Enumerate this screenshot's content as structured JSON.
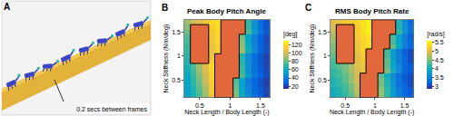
{
  "image_panel": {
    "panel": "A",
    "caption": "0.2 secs between frames"
  },
  "chart_data": [
    {
      "type": "heatmap",
      "panel": "B",
      "title": "Peak Body Pitch Angle",
      "x_label": "Neck Length / Body Length (-)",
      "y_label": "Neck Stiffness (Nm/deg)",
      "x": [
        0.3,
        0.4,
        0.5,
        0.6,
        0.7,
        0.8,
        0.9,
        1.0,
        1.1,
        1.2,
        1.3,
        1.4,
        1.5,
        1.6
      ],
      "y": [
        0.2,
        0.3,
        0.4,
        0.5,
        0.6,
        0.7,
        0.8,
        0.9,
        1.0,
        1.1,
        1.2,
        1.3,
        1.4,
        1.5,
        1.6,
        1.7
      ],
      "xlim": [
        0.25,
        1.65
      ],
      "xticks": [
        0.5,
        1,
        1.5
      ],
      "ylim": [
        0.15,
        1.75
      ],
      "yticks": [
        0.5,
        1,
        1.5
      ],
      "colorbar_title": "[deg]",
      "zlim": [
        15,
        130
      ],
      "zticks": [
        20,
        40,
        60,
        80,
        100,
        120
      ],
      "z": [
        [
          55,
          65,
          75,
          90,
          110,
          null,
          null,
          null,
          85,
          60,
          45,
          35,
          28,
          22
        ],
        [
          55,
          65,
          78,
          92,
          112,
          null,
          null,
          null,
          82,
          58,
          43,
          33,
          27,
          22
        ],
        [
          57,
          68,
          80,
          95,
          112,
          null,
          null,
          null,
          80,
          57,
          42,
          32,
          26,
          21
        ],
        [
          58,
          70,
          82,
          98,
          115,
          null,
          null,
          null,
          78,
          55,
          40,
          31,
          25,
          21
        ],
        [
          60,
          72,
          85,
          100,
          115,
          null,
          null,
          null,
          null,
          75,
          52,
          38,
          30,
          24
        ],
        [
          62,
          74,
          88,
          102,
          118,
          null,
          null,
          null,
          null,
          72,
          50,
          36,
          28,
          23
        ],
        [
          64,
          76,
          90,
          105,
          118,
          null,
          null,
          null,
          null,
          70,
          48,
          35,
          27,
          22
        ],
        [
          66,
          null,
          null,
          null,
          112,
          null,
          null,
          null,
          null,
          68,
          47,
          34,
          26,
          22
        ],
        [
          68,
          null,
          null,
          null,
          110,
          null,
          null,
          null,
          null,
          66,
          46,
          33,
          26,
          21
        ],
        [
          70,
          null,
          null,
          null,
          108,
          115,
          null,
          null,
          null,
          88,
          62,
          44,
          32,
          25
        ],
        [
          72,
          null,
          null,
          null,
          108,
          115,
          null,
          null,
          null,
          86,
          60,
          42,
          31,
          24
        ],
        [
          74,
          null,
          null,
          null,
          110,
          118,
          null,
          null,
          null,
          84,
          58,
          41,
          30,
          24
        ],
        [
          76,
          null,
          null,
          null,
          110,
          118,
          null,
          null,
          null,
          82,
          57,
          40,
          30,
          23
        ],
        [
          80,
          null,
          null,
          null,
          112,
          118,
          null,
          null,
          null,
          null,
          75,
          52,
          36,
          27
        ],
        [
          85,
          null,
          null,
          null,
          115,
          120,
          null,
          null,
          null,
          null,
          72,
          50,
          35,
          26
        ],
        [
          90,
          100,
          105,
          110,
          118,
          122,
          null,
          null,
          null,
          null,
          70,
          48,
          34,
          26
        ]
      ],
      "overlay": {
        "color": "#e2673d",
        "cells": [
          [
            0,
            0,
            0,
            0,
            0,
            1,
            1,
            1,
            0,
            0,
            0,
            0,
            0,
            0
          ],
          [
            0,
            0,
            0,
            0,
            0,
            1,
            1,
            1,
            0,
            0,
            0,
            0,
            0,
            0
          ],
          [
            0,
            0,
            0,
            0,
            0,
            1,
            1,
            1,
            0,
            0,
            0,
            0,
            0,
            0
          ],
          [
            0,
            0,
            0,
            0,
            0,
            1,
            1,
            1,
            0,
            0,
            0,
            0,
            0,
            0
          ],
          [
            0,
            0,
            0,
            0,
            0,
            1,
            1,
            1,
            1,
            0,
            0,
            0,
            0,
            0
          ],
          [
            0,
            0,
            0,
            0,
            0,
            1,
            1,
            1,
            1,
            0,
            0,
            0,
            0,
            0
          ],
          [
            0,
            0,
            0,
            0,
            0,
            1,
            1,
            1,
            1,
            0,
            0,
            0,
            0,
            0
          ],
          [
            0,
            1,
            1,
            1,
            0,
            1,
            1,
            1,
            1,
            0,
            0,
            0,
            0,
            0
          ],
          [
            0,
            1,
            1,
            1,
            0,
            1,
            1,
            1,
            1,
            0,
            0,
            0,
            0,
            0
          ],
          [
            0,
            1,
            1,
            1,
            0,
            0,
            1,
            1,
            1,
            0,
            0,
            0,
            0,
            0
          ],
          [
            0,
            1,
            1,
            1,
            0,
            0,
            1,
            1,
            1,
            0,
            0,
            0,
            0,
            0
          ],
          [
            0,
            1,
            1,
            1,
            0,
            0,
            1,
            1,
            1,
            0,
            0,
            0,
            0,
            0
          ],
          [
            0,
            1,
            1,
            1,
            0,
            0,
            1,
            1,
            1,
            0,
            0,
            0,
            0,
            0
          ],
          [
            0,
            1,
            1,
            1,
            0,
            0,
            1,
            1,
            1,
            1,
            0,
            0,
            0,
            0
          ],
          [
            0,
            1,
            1,
            1,
            0,
            0,
            1,
            1,
            1,
            1,
            0,
            0,
            0,
            0
          ],
          [
            0,
            0,
            0,
            0,
            0,
            0,
            1,
            1,
            1,
            1,
            0,
            0,
            0,
            0
          ]
        ]
      }
    },
    {
      "type": "heatmap",
      "panel": "C",
      "title": "RMS Body Pitch Rate",
      "x_label": "Neck Length / Body Length (-)",
      "y_label": "Neck Stiffness (Nm/deg)",
      "x": [
        0.3,
        0.4,
        0.5,
        0.6,
        0.7,
        0.8,
        0.9,
        1.0,
        1.1,
        1.2,
        1.3,
        1.4,
        1.5,
        1.6
      ],
      "y": [
        0.2,
        0.3,
        0.4,
        0.5,
        0.6,
        0.7,
        0.8,
        0.9,
        1.0,
        1.1,
        1.2,
        1.3,
        1.4,
        1.5,
        1.6,
        1.7
      ],
      "xlim": [
        0.25,
        1.65
      ],
      "xticks": [
        0.5,
        1,
        1.5
      ],
      "ylim": [
        0.15,
        1.75
      ],
      "yticks": [
        0.5,
        1,
        1.5
      ],
      "colorbar_title": "[rad/s]",
      "zlim": [
        2.9,
        5.6
      ],
      "zticks": [
        3,
        3.5,
        4,
        4.5,
        5,
        5.5
      ],
      "z": [
        [
          4.0,
          4.1,
          4.2,
          4.4,
          4.7,
          null,
          null,
          null,
          4.6,
          4.2,
          3.8,
          3.5,
          3.3,
          3.2
        ],
        [
          4.0,
          4.1,
          4.3,
          4.5,
          4.8,
          null,
          null,
          null,
          4.6,
          4.2,
          3.8,
          3.5,
          3.3,
          3.2
        ],
        [
          4.1,
          4.2,
          4.3,
          4.5,
          4.8,
          null,
          null,
          null,
          4.5,
          4.1,
          3.7,
          3.4,
          3.3,
          3.1
        ],
        [
          4.1,
          4.2,
          4.4,
          4.6,
          4.9,
          null,
          null,
          null,
          4.5,
          4.1,
          3.7,
          3.4,
          3.2,
          3.1
        ],
        [
          4.2,
          4.3,
          4.4,
          4.6,
          4.9,
          null,
          null,
          null,
          4.4,
          4.0,
          3.6,
          3.4,
          3.2,
          3.1
        ],
        [
          4.2,
          4.3,
          4.5,
          4.7,
          4.9,
          5.1,
          null,
          null,
          null,
          4.5,
          4.0,
          3.6,
          3.3,
          3.2
        ],
        [
          4.3,
          4.4,
          4.5,
          4.7,
          5.0,
          5.1,
          null,
          null,
          null,
          4.4,
          3.9,
          3.6,
          3.3,
          3.2
        ],
        [
          4.3,
          null,
          null,
          null,
          5.0,
          5.2,
          null,
          null,
          null,
          4.4,
          3.9,
          3.5,
          3.3,
          3.1
        ],
        [
          4.4,
          null,
          null,
          null,
          5.0,
          5.2,
          null,
          null,
          null,
          4.3,
          3.8,
          3.5,
          3.3,
          3.1
        ],
        [
          4.5,
          null,
          null,
          null,
          5.1,
          5.3,
          null,
          null,
          null,
          4.3,
          3.8,
          3.5,
          3.2,
          3.1
        ],
        [
          4.5,
          null,
          null,
          null,
          5.1,
          5.3,
          5.4,
          null,
          null,
          null,
          4.4,
          3.9,
          3.5,
          3.3
        ],
        [
          4.6,
          null,
          null,
          null,
          5.1,
          5.3,
          5.4,
          null,
          null,
          null,
          4.3,
          3.9,
          3.5,
          3.3
        ],
        [
          4.7,
          null,
          null,
          null,
          5.2,
          5.3,
          5.4,
          null,
          null,
          null,
          4.3,
          3.8,
          3.5,
          3.2
        ],
        [
          4.8,
          null,
          null,
          null,
          5.2,
          5.4,
          5.5,
          null,
          null,
          null,
          null,
          4.2,
          3.7,
          3.4
        ],
        [
          4.9,
          null,
          null,
          null,
          5.2,
          5.4,
          5.5,
          null,
          null,
          null,
          null,
          4.1,
          3.7,
          3.4
        ],
        [
          5.0,
          5.1,
          5.2,
          5.2,
          5.3,
          5.4,
          5.5,
          null,
          null,
          null,
          null,
          4.1,
          3.6,
          3.3
        ]
      ],
      "overlay": {
        "color": "#e2673d",
        "cells": [
          [
            0,
            0,
            0,
            0,
            0,
            1,
            1,
            1,
            0,
            0,
            0,
            0,
            0,
            0
          ],
          [
            0,
            0,
            0,
            0,
            0,
            1,
            1,
            1,
            0,
            0,
            0,
            0,
            0,
            0
          ],
          [
            0,
            0,
            0,
            0,
            0,
            1,
            1,
            1,
            0,
            0,
            0,
            0,
            0,
            0
          ],
          [
            0,
            0,
            0,
            0,
            0,
            1,
            1,
            1,
            0,
            0,
            0,
            0,
            0,
            0
          ],
          [
            0,
            0,
            0,
            0,
            0,
            1,
            1,
            1,
            0,
            0,
            0,
            0,
            0,
            0
          ],
          [
            0,
            0,
            0,
            0,
            0,
            0,
            1,
            1,
            1,
            0,
            0,
            0,
            0,
            0
          ],
          [
            0,
            0,
            0,
            0,
            0,
            0,
            1,
            1,
            1,
            0,
            0,
            0,
            0,
            0
          ],
          [
            0,
            1,
            1,
            1,
            0,
            0,
            1,
            1,
            1,
            0,
            0,
            0,
            0,
            0
          ],
          [
            0,
            1,
            1,
            1,
            0,
            0,
            1,
            1,
            1,
            0,
            0,
            0,
            0,
            0
          ],
          [
            0,
            1,
            1,
            1,
            0,
            0,
            1,
            1,
            1,
            0,
            0,
            0,
            0,
            0
          ],
          [
            0,
            1,
            1,
            1,
            0,
            0,
            0,
            1,
            1,
            1,
            0,
            0,
            0,
            0
          ],
          [
            0,
            1,
            1,
            1,
            0,
            0,
            0,
            1,
            1,
            1,
            0,
            0,
            0,
            0
          ],
          [
            0,
            1,
            1,
            1,
            0,
            0,
            0,
            1,
            1,
            1,
            0,
            0,
            0,
            0
          ],
          [
            0,
            1,
            1,
            1,
            0,
            0,
            0,
            1,
            1,
            1,
            1,
            0,
            0,
            0
          ],
          [
            0,
            1,
            1,
            1,
            0,
            0,
            0,
            1,
            1,
            1,
            1,
            0,
            0,
            0
          ],
          [
            0,
            0,
            0,
            0,
            0,
            0,
            0,
            1,
            1,
            1,
            1,
            0,
            0,
            0
          ]
        ]
      }
    }
  ]
}
